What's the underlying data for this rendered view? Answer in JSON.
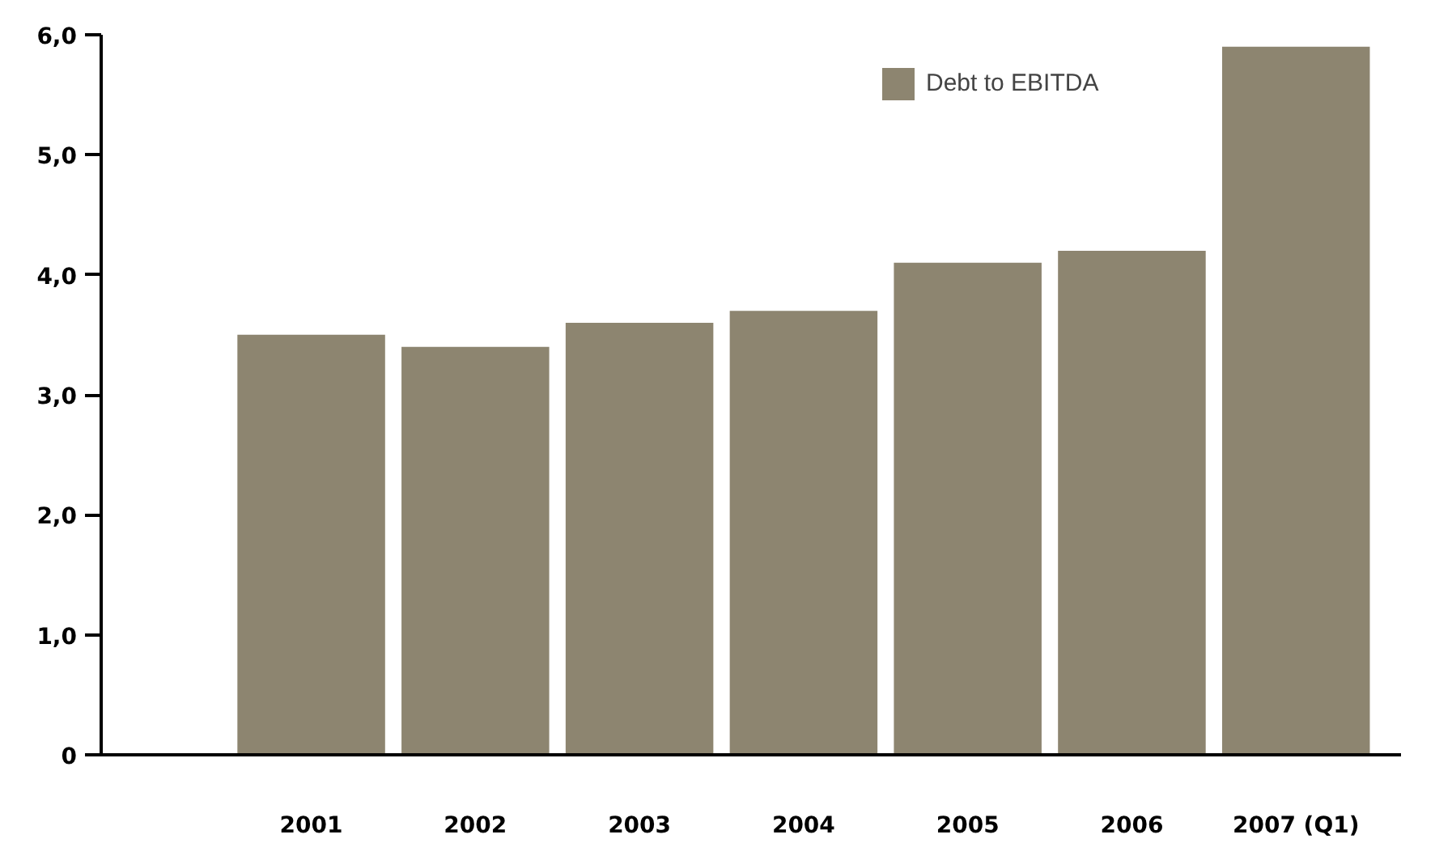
{
  "chart_data": {
    "type": "bar",
    "categories": [
      "2001",
      "2002",
      "2003",
      "2004",
      "2005",
      "2006",
      "2007 (Q1)"
    ],
    "series": [
      {
        "name": "Debt to EBITDA",
        "color": "#8d8570",
        "values": [
          3.5,
          3.4,
          3.6,
          3.7,
          4.1,
          4.2,
          5.9
        ]
      }
    ],
    "ylim": [
      0,
      6.0
    ],
    "yticks": [
      {
        "value": 0,
        "label": "0"
      },
      {
        "value": 1,
        "label": "1,0"
      },
      {
        "value": 2,
        "label": "2,0"
      },
      {
        "value": 3,
        "label": "3,0"
      },
      {
        "value": 4,
        "label": "4,0"
      },
      {
        "value": 5,
        "label": "5,0"
      },
      {
        "value": 6,
        "label": "6,0"
      }
    ],
    "grid": false,
    "legend": "top right"
  }
}
